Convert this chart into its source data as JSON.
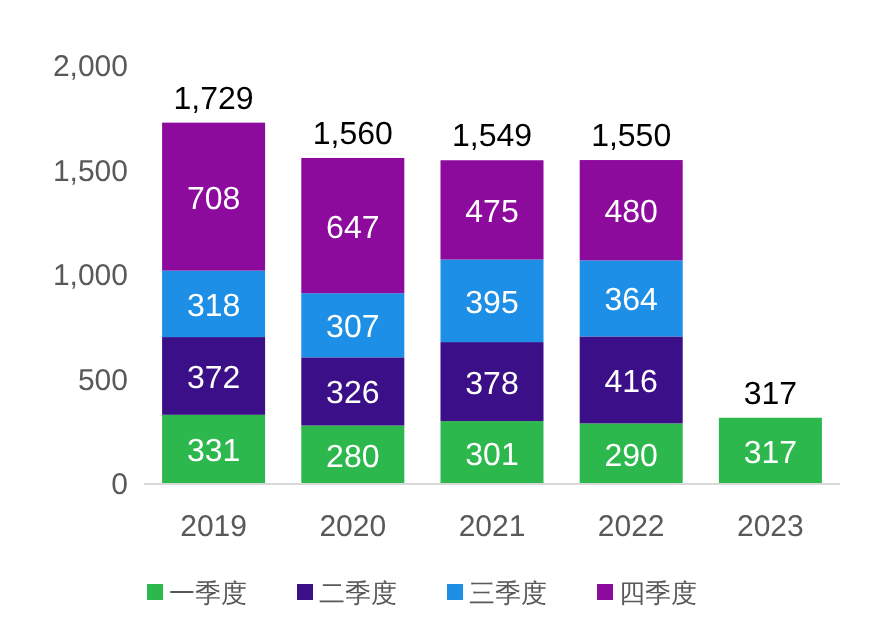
{
  "chart_data": {
    "type": "bar",
    "stacked": true,
    "categories": [
      "2019",
      "2020",
      "2021",
      "2022",
      "2023"
    ],
    "series": [
      {
        "name": "一季度",
        "color": "#2db84d",
        "values": [
          331,
          280,
          301,
          290,
          317
        ]
      },
      {
        "name": "二季度",
        "color": "#3b0f87",
        "values": [
          372,
          326,
          378,
          416,
          null
        ]
      },
      {
        "name": "三季度",
        "color": "#1e8fe6",
        "values": [
          318,
          307,
          395,
          364,
          null
        ]
      },
      {
        "name": "四季度",
        "color": "#8c0a9c",
        "values": [
          708,
          647,
          475,
          480,
          null
        ]
      }
    ],
    "ylim": [
      0,
      2000
    ],
    "yticks": [
      0,
      500,
      {
        "value": 1000,
        "label": "1,000"
      },
      {
        "value": 1500,
        "label": "1,500"
      },
      {
        "value": 2000,
        "label": "2,000"
      }
    ],
    "data_labels": true,
    "totals": [
      "1,729",
      "1,560",
      "1,549",
      "1,550",
      "317"
    ],
    "grid": false,
    "legend": "bottom"
  }
}
